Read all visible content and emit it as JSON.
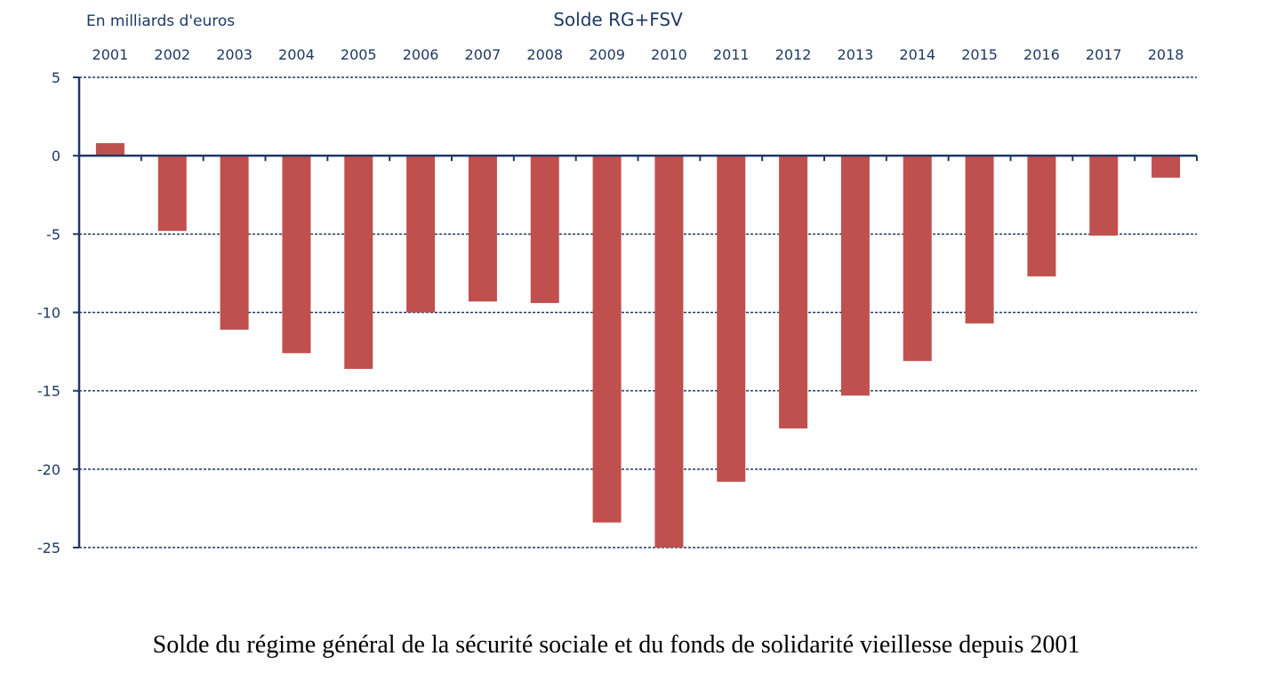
{
  "chart_data": {
    "type": "bar",
    "title": "Solde RG+FSV",
    "unit_label": "En milliards d'euros",
    "categories": [
      "2001",
      "2002",
      "2003",
      "2004",
      "2005",
      "2006",
      "2007",
      "2008",
      "2009",
      "2010",
      "2011",
      "2012",
      "2013",
      "2014",
      "2015",
      "2016",
      "2017",
      "2018"
    ],
    "values": [
      0.8,
      -4.8,
      -11.1,
      -12.6,
      -13.6,
      -10.0,
      -9.3,
      -9.4,
      -23.4,
      -25.0,
      -20.8,
      -17.4,
      -15.3,
      -13.1,
      -10.7,
      -7.7,
      -5.1,
      -1.4
    ],
    "ylim": [
      -25,
      5
    ],
    "yticks": [
      "5",
      "0",
      "-5",
      "-10",
      "-15",
      "-20",
      "-25"
    ],
    "ytick_values": [
      5,
      0,
      -5,
      -10,
      -15,
      -20,
      -25
    ],
    "x_axis_position": "top",
    "grid": true,
    "bar_color": "#c0504d",
    "axis_color": "#1f3864",
    "text_color": "#1f3864"
  },
  "caption": "Solde du régime général de la sécurité sociale et du fonds de solidarité vieillesse depuis 2001"
}
